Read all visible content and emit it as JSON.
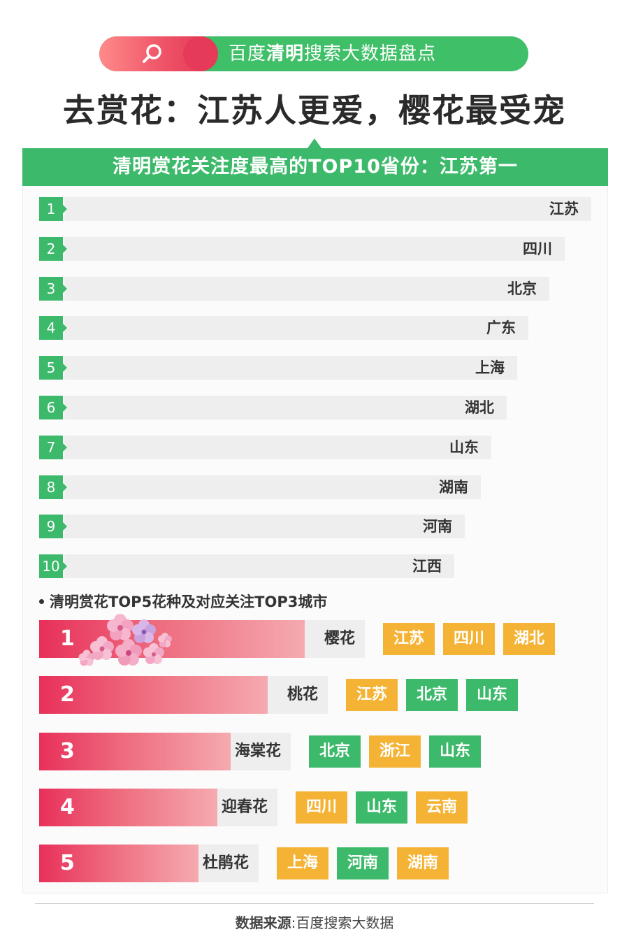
{
  "top_pill": {
    "prefix": "百度",
    "highlight": "清明",
    "suffix": "搜索大数据盘点",
    "icon": "search-icon"
  },
  "headline": "去赏花：江苏人更爱，樱花最受宠",
  "card_header": "清明赏花关注度最高的TOP10省份：江苏第一",
  "section2_title": "清明赏花TOP5花种及对应关注TOP3城市",
  "footer": {
    "label": "数据来源",
    "separator": ":",
    "source": "百度搜索大数据"
  },
  "colors": {
    "green": "#3cb96a",
    "orange": "#f5b335",
    "pink_start": "#e8305a",
    "pink_end": "#f5aab0",
    "track": "#eeeeee"
  },
  "chart_data": [
    {
      "type": "bar",
      "title": "清明赏花关注度最高的TOP10省份：江苏第一",
      "orientation": "horizontal",
      "ranks": [
        "1",
        "2",
        "3",
        "4",
        "5",
        "6",
        "7",
        "8",
        "9",
        "10"
      ],
      "categories": [
        "江苏",
        "四川",
        "北京",
        "广东",
        "上海",
        "湖北",
        "山东",
        "湖南",
        "河南",
        "江西"
      ],
      "values": [
        100,
        95,
        92,
        88,
        86,
        84,
        81,
        79,
        76,
        74
      ],
      "xlim": [
        0,
        100
      ],
      "grid": false
    },
    {
      "type": "bar",
      "title": "清明赏花TOP5花种及对应关注TOP3城市",
      "orientation": "horizontal",
      "ranks": [
        "1",
        "2",
        "3",
        "4",
        "5"
      ],
      "categories": [
        "樱花",
        "桃花",
        "海棠花",
        "迎春花",
        "杜鹃花"
      ],
      "values": [
        100,
        86,
        72,
        67,
        60
      ],
      "xlim": [
        0,
        100
      ],
      "top_cities": [
        [
          {
            "name": "江苏",
            "color": "orange"
          },
          {
            "name": "四川",
            "color": "orange"
          },
          {
            "name": "湖北",
            "color": "orange"
          }
        ],
        [
          {
            "name": "江苏",
            "color": "orange"
          },
          {
            "name": "北京",
            "color": "green"
          },
          {
            "name": "山东",
            "color": "green"
          }
        ],
        [
          {
            "name": "北京",
            "color": "green"
          },
          {
            "name": "浙江",
            "color": "orange"
          },
          {
            "name": "山东",
            "color": "green"
          }
        ],
        [
          {
            "name": "四川",
            "color": "orange"
          },
          {
            "name": "山东",
            "color": "green"
          },
          {
            "name": "云南",
            "color": "orange"
          }
        ],
        [
          {
            "name": "上海",
            "color": "orange"
          },
          {
            "name": "河南",
            "color": "green"
          },
          {
            "name": "湖南",
            "color": "orange"
          }
        ]
      ]
    }
  ]
}
